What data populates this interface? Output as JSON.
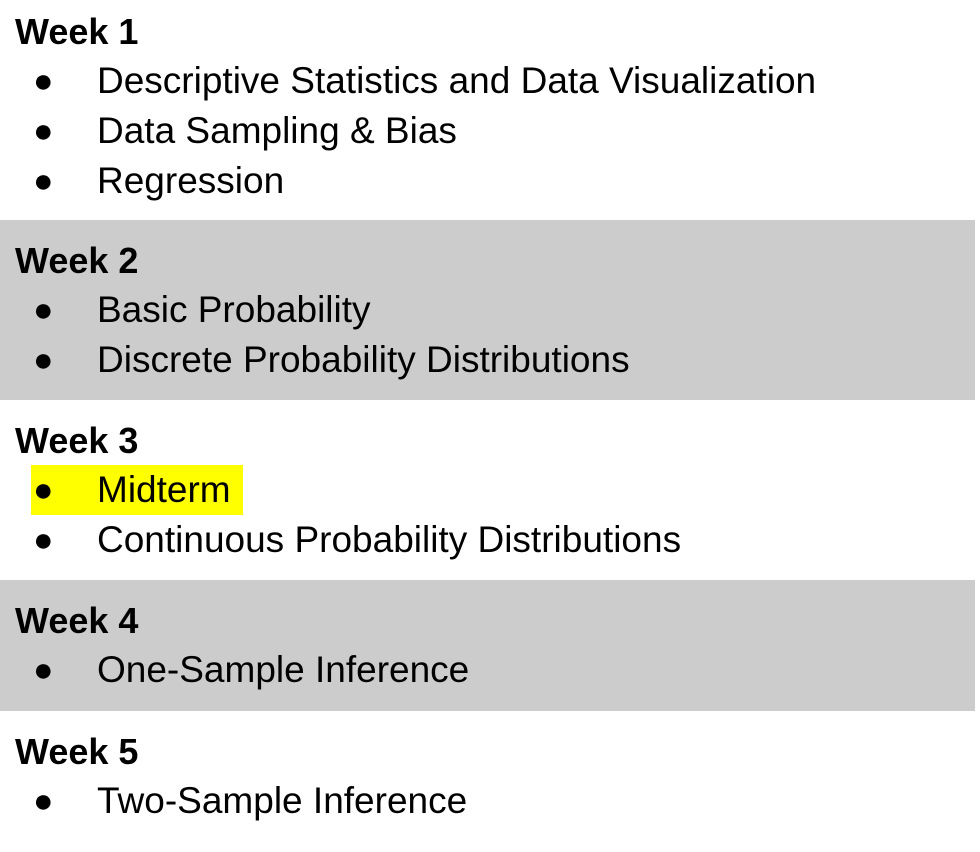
{
  "colors": {
    "band": "#cccccc",
    "highlight": "#ffff00",
    "text": "#000000"
  },
  "bullet_glyph": "●",
  "weeks": [
    {
      "title": "Week 1",
      "topics": [
        "Descriptive Statistics and Data Visualization",
        "Data Sampling & Bias",
        "Regression"
      ]
    },
    {
      "title": "Week 2",
      "topics": [
        "Basic Probability",
        "Discrete Probability Distributions"
      ]
    },
    {
      "title": "Week 3",
      "topics": [
        "Midterm",
        "Continuous Probability Distributions"
      ],
      "highlighted_topic": "Midterm"
    },
    {
      "title": "Week 4",
      "topics": [
        "One-Sample Inference"
      ]
    },
    {
      "title": "Week 5",
      "topics": [
        "Two-Sample Inference"
      ]
    }
  ]
}
